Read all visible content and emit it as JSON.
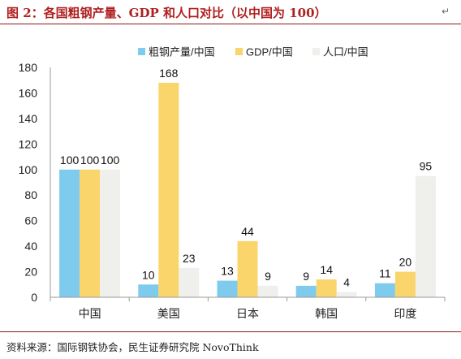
{
  "title": "图 2：各国粗钢产量、GDP 和人口对比（以中国为 100）",
  "source": "资料来源：国际钢铁协会，民生证券研究院 NovoThink",
  "chart_data": {
    "type": "bar",
    "categories": [
      "中国",
      "美国",
      "日本",
      "韩国",
      "印度"
    ],
    "series": [
      {
        "name": "粗钢产量/中国",
        "values": [
          100,
          10,
          13,
          9,
          11
        ],
        "color": "#7ecbee"
      },
      {
        "name": "GDP/中国",
        "values": [
          100,
          168,
          44,
          14,
          20
        ],
        "color": "#fad56b"
      },
      {
        "name": "人口/中国",
        "values": [
          100,
          23,
          9,
          4,
          95
        ],
        "color": "#efefec"
      }
    ],
    "ylim": [
      0,
      180
    ],
    "yticks": [
      "0",
      "20",
      "40",
      "60",
      "80",
      "100",
      "120",
      "140",
      "160",
      "180"
    ],
    "grid": false,
    "legend_position": "top"
  }
}
